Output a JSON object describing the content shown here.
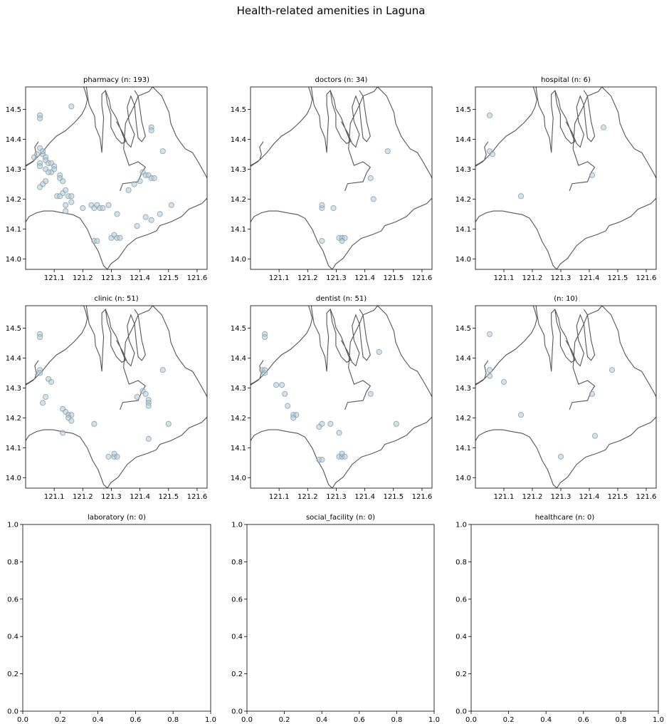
{
  "figure": {
    "title": "Health-related amenities in Laguna"
  },
  "colors": {
    "point_fill": "#b5cad6",
    "point_stroke": "#7f9aa8",
    "boundary": "#555555",
    "axes": "#000000"
  },
  "chart_data": [
    {
      "type": "scatter",
      "title": "pharmacy (n: 193)",
      "xlim": [
        121.0,
        121.635
      ],
      "ylim": [
        13.965,
        14.575
      ],
      "xticks": [
        121.1,
        121.2,
        121.3,
        121.4,
        121.5,
        121.6
      ],
      "yticks": [
        14.0,
        14.1,
        14.2,
        14.3,
        14.4,
        14.5
      ],
      "points": [
        [
          121.05,
          14.48
        ],
        [
          121.05,
          14.47
        ],
        [
          121.16,
          14.51
        ],
        [
          121.03,
          14.34
        ],
        [
          121.04,
          14.35
        ],
        [
          121.05,
          14.37
        ],
        [
          121.06,
          14.35
        ],
        [
          121.06,
          14.36
        ],
        [
          121.07,
          14.34
        ],
        [
          121.07,
          14.33
        ],
        [
          121.05,
          14.32
        ],
        [
          121.05,
          14.31
        ],
        [
          121.08,
          14.32
        ],
        [
          121.09,
          14.32
        ],
        [
          121.1,
          14.31
        ],
        [
          121.09,
          14.29
        ],
        [
          121.1,
          14.3
        ],
        [
          121.07,
          14.3
        ],
        [
          121.08,
          14.29
        ],
        [
          121.12,
          14.28
        ],
        [
          121.12,
          14.27
        ],
        [
          121.13,
          14.26
        ],
        [
          121.07,
          14.26
        ],
        [
          121.06,
          14.25
        ],
        [
          121.05,
          14.24
        ],
        [
          121.11,
          14.21
        ],
        [
          121.12,
          14.21
        ],
        [
          121.13,
          14.22
        ],
        [
          121.14,
          14.23
        ],
        [
          121.15,
          14.21
        ],
        [
          121.16,
          14.21
        ],
        [
          121.16,
          14.19
        ],
        [
          121.14,
          14.18
        ],
        [
          121.14,
          14.16
        ],
        [
          121.2,
          14.17
        ],
        [
          121.23,
          14.18
        ],
        [
          121.24,
          14.17
        ],
        [
          121.25,
          14.18
        ],
        [
          121.26,
          14.17
        ],
        [
          121.27,
          14.17
        ],
        [
          121.29,
          14.18
        ],
        [
          121.24,
          14.06
        ],
        [
          121.25,
          14.06
        ],
        [
          121.3,
          14.07
        ],
        [
          121.31,
          14.08
        ],
        [
          121.32,
          14.07
        ],
        [
          121.33,
          14.07
        ],
        [
          121.32,
          14.15
        ],
        [
          121.36,
          14.23
        ],
        [
          121.38,
          14.25
        ],
        [
          121.4,
          14.26
        ],
        [
          121.41,
          14.29
        ],
        [
          121.42,
          14.28
        ],
        [
          121.43,
          14.28
        ],
        [
          121.44,
          14.27
        ],
        [
          121.45,
          14.27
        ],
        [
          121.47,
          14.15
        ],
        [
          121.42,
          14.14
        ],
        [
          121.44,
          14.13
        ],
        [
          121.39,
          14.11
        ],
        [
          121.48,
          14.36
        ],
        [
          121.44,
          14.44
        ],
        [
          121.44,
          14.43
        ],
        [
          121.51,
          14.18
        ]
      ]
    },
    {
      "type": "scatter",
      "title": "doctors (n: 34)",
      "xlim": [
        121.0,
        121.635
      ],
      "ylim": [
        13.965,
        14.575
      ],
      "xticks": [
        121.1,
        121.2,
        121.3,
        121.4,
        121.5,
        121.6
      ],
      "yticks": [
        14.0,
        14.1,
        14.2,
        14.3,
        14.4,
        14.5
      ],
      "points": [
        [
          121.25,
          14.17
        ],
        [
          121.25,
          14.18
        ],
        [
          121.29,
          14.17
        ],
        [
          121.25,
          14.06
        ],
        [
          121.31,
          14.07
        ],
        [
          121.32,
          14.07
        ],
        [
          121.33,
          14.07
        ],
        [
          121.32,
          14.06
        ],
        [
          121.42,
          14.27
        ],
        [
          121.43,
          14.2
        ],
        [
          121.48,
          14.36
        ]
      ]
    },
    {
      "type": "scatter",
      "title": "hospital (n: 6)",
      "xlim": [
        121.0,
        121.635
      ],
      "ylim": [
        13.965,
        14.575
      ],
      "xticks": [
        121.1,
        121.2,
        121.3,
        121.4,
        121.5,
        121.6
      ],
      "yticks": [
        14.0,
        14.1,
        14.2,
        14.3,
        14.4,
        14.5
      ],
      "points": [
        [
          121.05,
          14.48
        ],
        [
          121.05,
          14.36
        ],
        [
          121.06,
          14.35
        ],
        [
          121.16,
          14.21
        ],
        [
          121.41,
          14.28
        ],
        [
          121.45,
          14.44
        ]
      ]
    },
    {
      "type": "scatter",
      "title": "clinic (n: 51)",
      "xlim": [
        121.0,
        121.635
      ],
      "ylim": [
        13.965,
        14.575
      ],
      "xticks": [
        121.1,
        121.2,
        121.3,
        121.4,
        121.5,
        121.6
      ],
      "yticks": [
        14.0,
        14.1,
        14.2,
        14.3,
        14.4,
        14.5
      ],
      "points": [
        [
          121.05,
          14.48
        ],
        [
          121.05,
          14.47
        ],
        [
          121.05,
          14.36
        ],
        [
          121.05,
          14.35
        ],
        [
          121.08,
          14.33
        ],
        [
          121.09,
          14.32
        ],
        [
          121.07,
          14.27
        ],
        [
          121.06,
          14.25
        ],
        [
          121.13,
          14.23
        ],
        [
          121.14,
          14.22
        ],
        [
          121.15,
          14.21
        ],
        [
          121.16,
          14.21
        ],
        [
          121.15,
          14.2
        ],
        [
          121.16,
          14.19
        ],
        [
          121.13,
          14.15
        ],
        [
          121.24,
          14.18
        ],
        [
          121.29,
          14.07
        ],
        [
          121.31,
          14.07
        ],
        [
          121.32,
          14.07
        ],
        [
          121.31,
          14.08
        ],
        [
          121.39,
          14.27
        ],
        [
          121.41,
          14.29
        ],
        [
          121.42,
          14.28
        ],
        [
          121.43,
          14.26
        ],
        [
          121.43,
          14.25
        ],
        [
          121.43,
          14.24
        ],
        [
          121.48,
          14.36
        ],
        [
          121.43,
          14.13
        ],
        [
          121.5,
          14.18
        ]
      ]
    },
    {
      "type": "scatter",
      "title": "dentist (n: 51)",
      "xlim": [
        121.0,
        121.635
      ],
      "ylim": [
        13.965,
        14.575
      ],
      "xticks": [
        121.1,
        121.2,
        121.3,
        121.4,
        121.5,
        121.6
      ],
      "yticks": [
        14.0,
        14.1,
        14.2,
        14.3,
        14.4,
        14.5
      ],
      "points": [
        [
          121.05,
          14.48
        ],
        [
          121.05,
          14.47
        ],
        [
          121.04,
          14.36
        ],
        [
          121.05,
          14.35
        ],
        [
          121.05,
          14.36
        ],
        [
          121.09,
          14.31
        ],
        [
          121.11,
          14.31
        ],
        [
          121.12,
          14.28
        ],
        [
          121.13,
          14.24
        ],
        [
          121.15,
          14.21
        ],
        [
          121.16,
          14.21
        ],
        [
          121.15,
          14.2
        ],
        [
          121.25,
          14.18
        ],
        [
          121.24,
          14.17
        ],
        [
          121.28,
          14.18
        ],
        [
          121.31,
          14.15
        ],
        [
          121.24,
          14.06
        ],
        [
          121.25,
          14.06
        ],
        [
          121.31,
          14.07
        ],
        [
          121.32,
          14.07
        ],
        [
          121.32,
          14.08
        ],
        [
          121.33,
          14.07
        ],
        [
          121.42,
          14.28
        ],
        [
          121.45,
          14.42
        ],
        [
          121.51,
          14.18
        ]
      ]
    },
    {
      "type": "scatter",
      "title": "(n: 10)",
      "xlim": [
        121.0,
        121.635
      ],
      "ylim": [
        13.965,
        14.575
      ],
      "xticks": [
        121.1,
        121.2,
        121.3,
        121.4,
        121.5,
        121.6
      ],
      "yticks": [
        14.0,
        14.1,
        14.2,
        14.3,
        14.4,
        14.5
      ],
      "points": [
        [
          121.05,
          14.48
        ],
        [
          121.05,
          14.36
        ],
        [
          121.05,
          14.34
        ],
        [
          121.1,
          14.32
        ],
        [
          121.16,
          14.21
        ],
        [
          121.3,
          14.07
        ],
        [
          121.41,
          14.28
        ],
        [
          121.42,
          14.14
        ],
        [
          121.48,
          14.36
        ]
      ]
    },
    {
      "type": "scatter",
      "title": "laboratory (n: 0)",
      "xlim": [
        0,
        1
      ],
      "ylim": [
        0,
        1
      ],
      "xticks": [
        0.0,
        0.2,
        0.4,
        0.6,
        0.8,
        1.0
      ],
      "yticks": [
        0.0,
        0.2,
        0.4,
        0.6,
        0.8,
        1.0
      ],
      "points": []
    },
    {
      "type": "scatter",
      "title": "social_facility (n: 0)",
      "xlim": [
        0,
        1
      ],
      "ylim": [
        0,
        1
      ],
      "xticks": [
        0.0,
        0.2,
        0.4,
        0.6,
        0.8,
        1.0
      ],
      "yticks": [
        0.0,
        0.2,
        0.4,
        0.6,
        0.8,
        1.0
      ],
      "points": []
    },
    {
      "type": "scatter",
      "title": "healthcare (n: 0)",
      "xlim": [
        0,
        1
      ],
      "ylim": [
        0,
        1
      ],
      "xticks": [
        0.0,
        0.2,
        0.4,
        0.6,
        0.8,
        1.0
      ],
      "yticks": [
        0.0,
        0.2,
        0.4,
        0.6,
        0.8,
        1.0
      ],
      "points": []
    }
  ]
}
